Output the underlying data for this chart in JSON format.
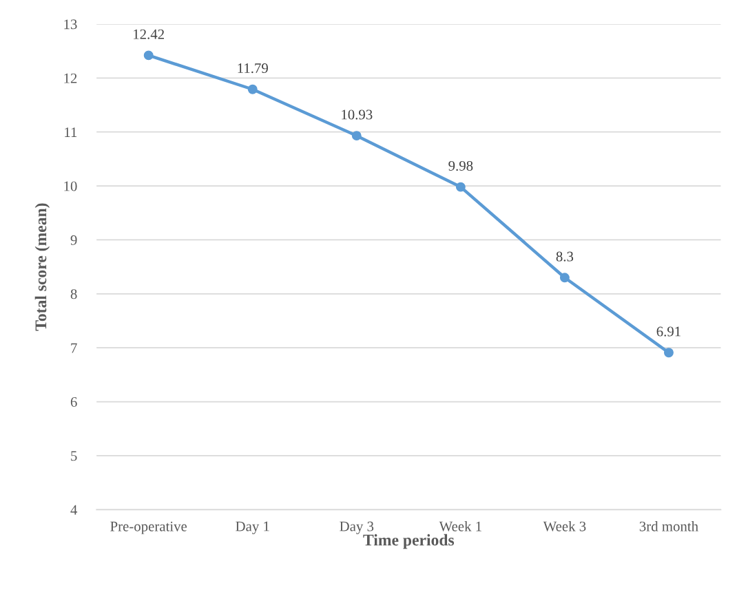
{
  "chart_data": {
    "type": "line",
    "xlabel": "Time periods",
    "ylabel": "Total score (mean)",
    "categories": [
      "Pre-operative",
      "Day 1",
      "Day 3",
      "Week 1",
      "Week 3",
      "3rd month"
    ],
    "values": [
      12.42,
      11.79,
      10.93,
      9.98,
      8.3,
      6.91
    ],
    "color": "#5b9bd5",
    "marker": "circle",
    "line_style": "solid",
    "ylim": [
      4,
      13
    ],
    "yticks": [
      4,
      5,
      6,
      7,
      8,
      9,
      10,
      11,
      12,
      13
    ],
    "grid": "y",
    "data_labels": true
  }
}
